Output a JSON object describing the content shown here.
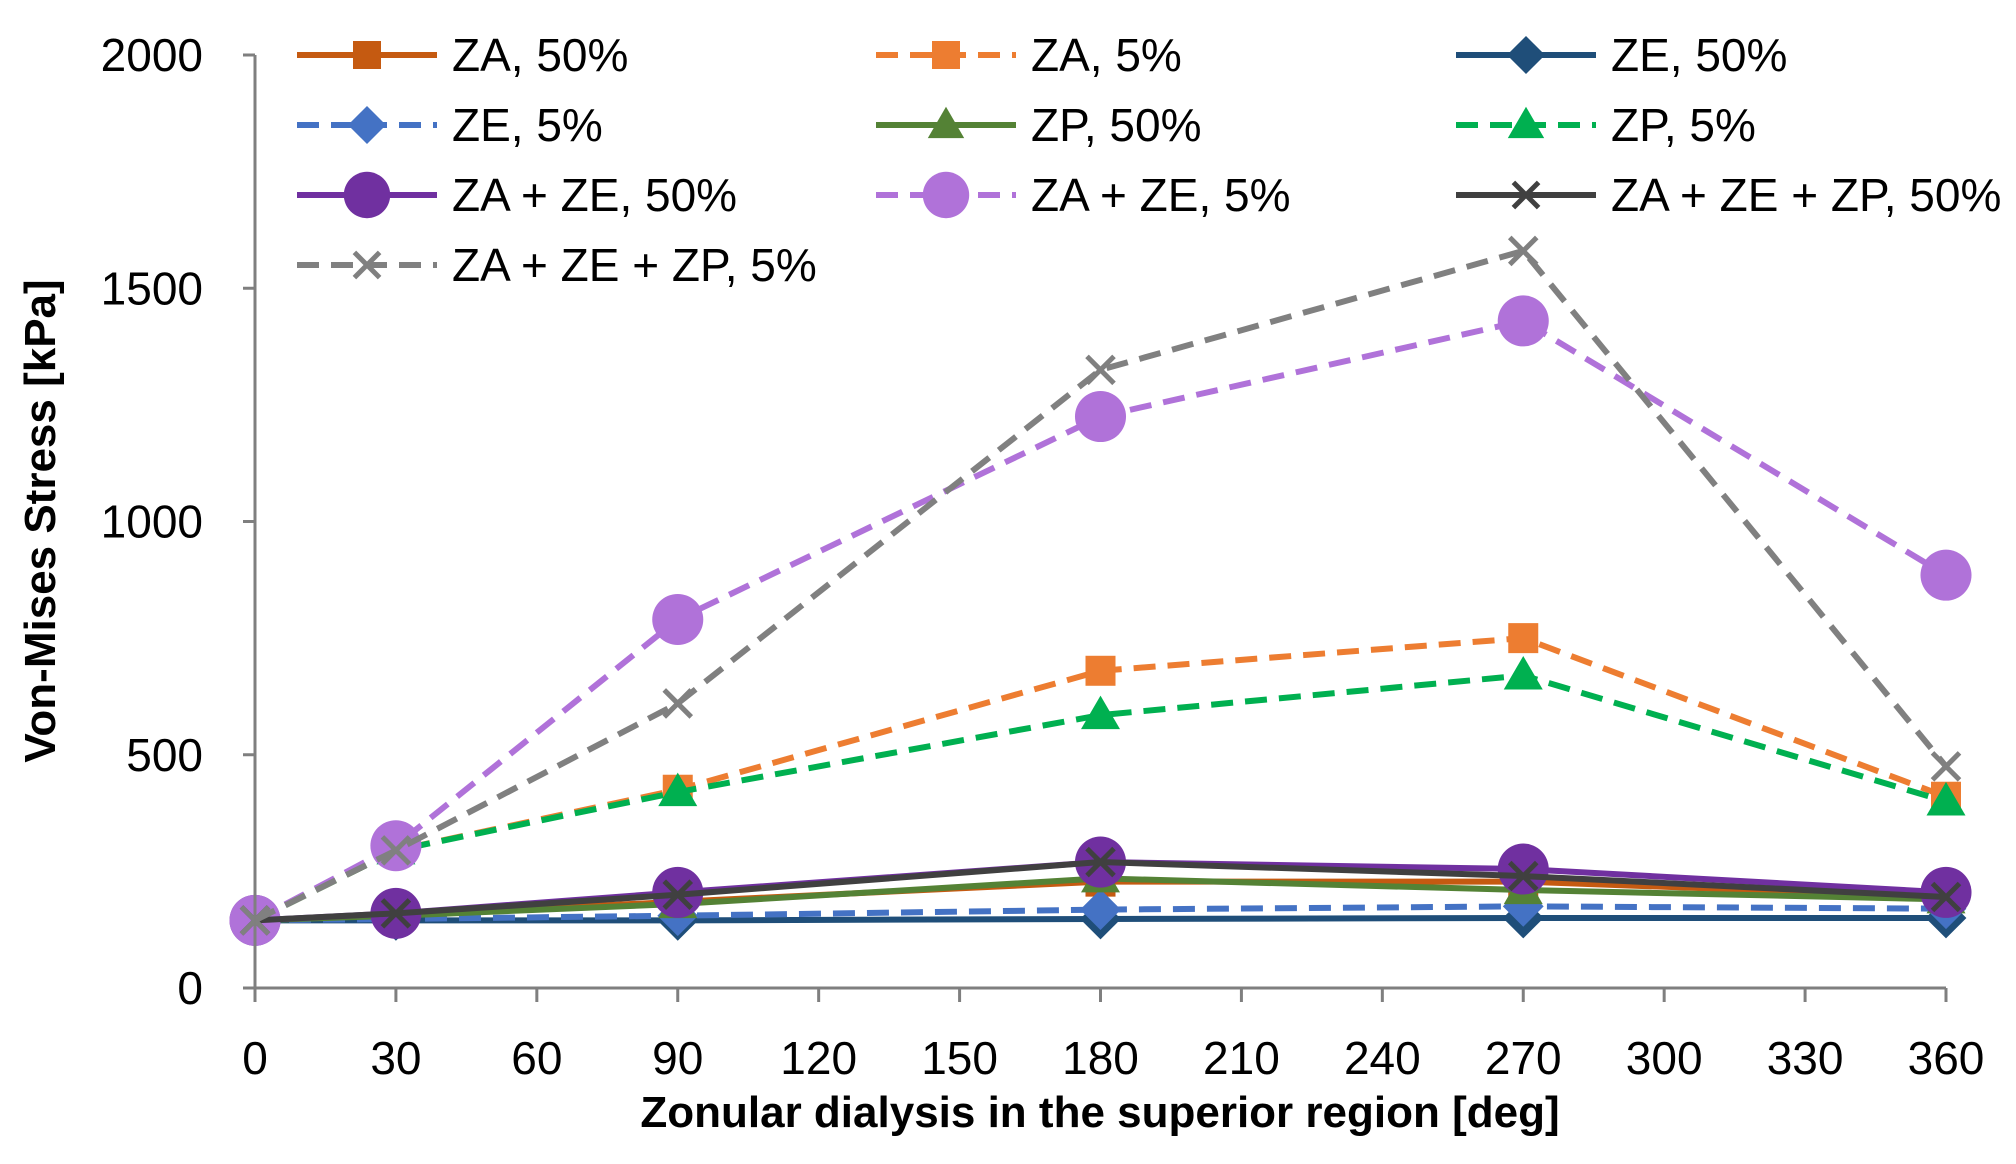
{
  "chart_data": {
    "type": "line",
    "title": "",
    "xlabel": "Zonular dialysis in the superior region [deg]",
    "ylabel": "Von-Mises Stress [kPa]",
    "xlim": [
      0,
      360
    ],
    "ylim": [
      0,
      2000
    ],
    "xticks": [
      0,
      30,
      60,
      90,
      120,
      150,
      180,
      210,
      240,
      270,
      300,
      330,
      360
    ],
    "yticks": [
      0,
      500,
      1000,
      1500,
      2000
    ],
    "grid": false,
    "legend_position": "top",
    "x": [
      0,
      30,
      90,
      180,
      270,
      360
    ],
    "series": [
      {
        "name": "ZA, 50%",
        "color": "#c55a11",
        "dash": "solid",
        "marker": "square",
        "values": [
          145,
          155,
          185,
          228,
          228,
          195
        ]
      },
      {
        "name": "ZA, 5%",
        "color": "#ed7d31",
        "dash": "dashed",
        "marker": "square",
        "values": [
          145,
          295,
          425,
          680,
          750,
          410
        ]
      },
      {
        "name": "ZE, 50%",
        "color": "#1f4e79",
        "dash": "solid",
        "marker": "diamond",
        "values": [
          145,
          145,
          145,
          148,
          150,
          150
        ]
      },
      {
        "name": "ZE, 5%",
        "color": "#4472c4",
        "dash": "dashed",
        "marker": "diamond",
        "values": [
          145,
          148,
          155,
          168,
          175,
          170
        ]
      },
      {
        "name": "ZP, 50%",
        "color": "#548235",
        "dash": "solid",
        "marker": "triangle",
        "values": [
          145,
          155,
          180,
          235,
          210,
          190
        ]
      },
      {
        "name": "ZP, 5%",
        "color": "#00b050",
        "dash": "dashed",
        "marker": "triangle",
        "values": [
          145,
          295,
          420,
          585,
          670,
          400
        ]
      },
      {
        "name": "ZA + ZE, 50%",
        "color": "#7030a0",
        "dash": "solid",
        "marker": "circle",
        "values": [
          145,
          160,
          205,
          270,
          255,
          205
        ]
      },
      {
        "name": "ZA + ZE, 5%",
        "color": "#b072d9",
        "dash": "dashed",
        "marker": "circle",
        "values": [
          145,
          305,
          790,
          1225,
          1430,
          885
        ]
      },
      {
        "name": "ZA + ZE + ZP, 50%",
        "color": "#404040",
        "dash": "solid",
        "marker": "x",
        "values": [
          145,
          160,
          200,
          270,
          240,
          195
        ]
      },
      {
        "name": "ZA + ZE + ZP, 5%",
        "color": "#808080",
        "dash": "dashed",
        "marker": "x",
        "values": [
          145,
          295,
          610,
          1325,
          1580,
          475
        ]
      }
    ]
  }
}
